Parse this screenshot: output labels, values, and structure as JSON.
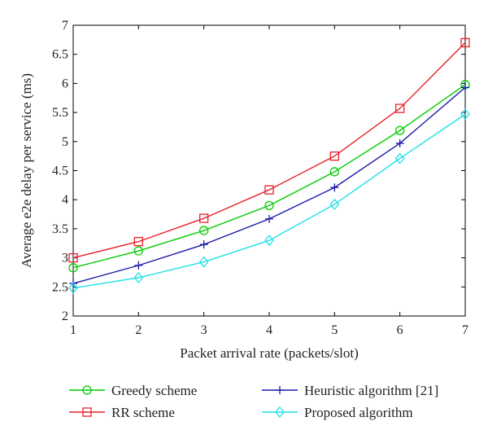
{
  "chart_data": {
    "type": "line",
    "xlabel": "Packet arrival rate (packets/slot)",
    "ylabel": "Average e2e delay per service (ms)",
    "xlim": [
      1,
      7
    ],
    "ylim": [
      2,
      7
    ],
    "x": [
      1,
      2,
      3,
      4,
      5,
      6,
      7
    ],
    "xticks": [
      "1",
      "2",
      "3",
      "4",
      "5",
      "6",
      "7"
    ],
    "yticks": [
      "2",
      "2.5",
      "3",
      "3.5",
      "4",
      "4.5",
      "5",
      "5.5",
      "6",
      "6.5",
      "7"
    ],
    "grid": false,
    "legend_position": "bottom",
    "series": [
      {
        "name": "Greedy scheme",
        "color": "#00cc00",
        "marker": "circle",
        "values": [
          2.83,
          3.12,
          3.47,
          3.9,
          4.48,
          5.19,
          5.98
        ]
      },
      {
        "name": "RR scheme",
        "color": "#e8202a",
        "marker": "square",
        "values": [
          3.0,
          3.28,
          3.68,
          4.17,
          4.75,
          5.57,
          6.7
        ]
      },
      {
        "name": "Heuristic algorithm [21]",
        "color": "#1a1aa8",
        "marker": "plus",
        "values": [
          2.56,
          2.87,
          3.23,
          3.67,
          4.21,
          4.97,
          5.93
        ]
      },
      {
        "name": "Proposed algorithm",
        "color": "#22e0e6",
        "marker": "diamond",
        "values": [
          2.48,
          2.66,
          2.93,
          3.3,
          3.92,
          4.71,
          5.47
        ]
      }
    ]
  }
}
